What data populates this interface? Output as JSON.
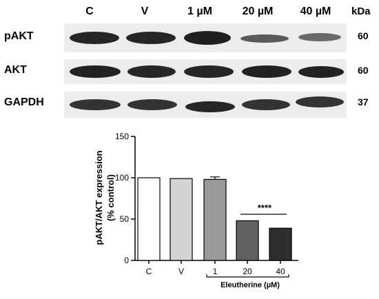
{
  "blot": {
    "lanes": [
      "C",
      "V",
      "1 µM",
      "20 µM",
      "40 µM"
    ],
    "kda_header": "kDa",
    "rows": [
      {
        "label": "pAKT",
        "kda": "60"
      },
      {
        "label": "AKT",
        "kda": "60"
      },
      {
        "label": "GAPDH",
        "kda": "37"
      }
    ]
  },
  "chart_data": {
    "type": "bar",
    "categories": [
      "C",
      "V",
      "1",
      "20",
      "40"
    ],
    "values": [
      100,
      99,
      98,
      48,
      39
    ],
    "errors": [
      0,
      0,
      3,
      0,
      0
    ],
    "ylabel": "pAKT/AKT expression\n(% control)",
    "ylim": [
      0,
      150
    ],
    "yticks": [
      0,
      50,
      100,
      150
    ],
    "group_label": "Eleutherine (µM)",
    "significance": "****",
    "bar_colors": [
      "#ffffff",
      "#d3d3d3",
      "#999999",
      "#616161",
      "#2e2e2e"
    ]
  }
}
